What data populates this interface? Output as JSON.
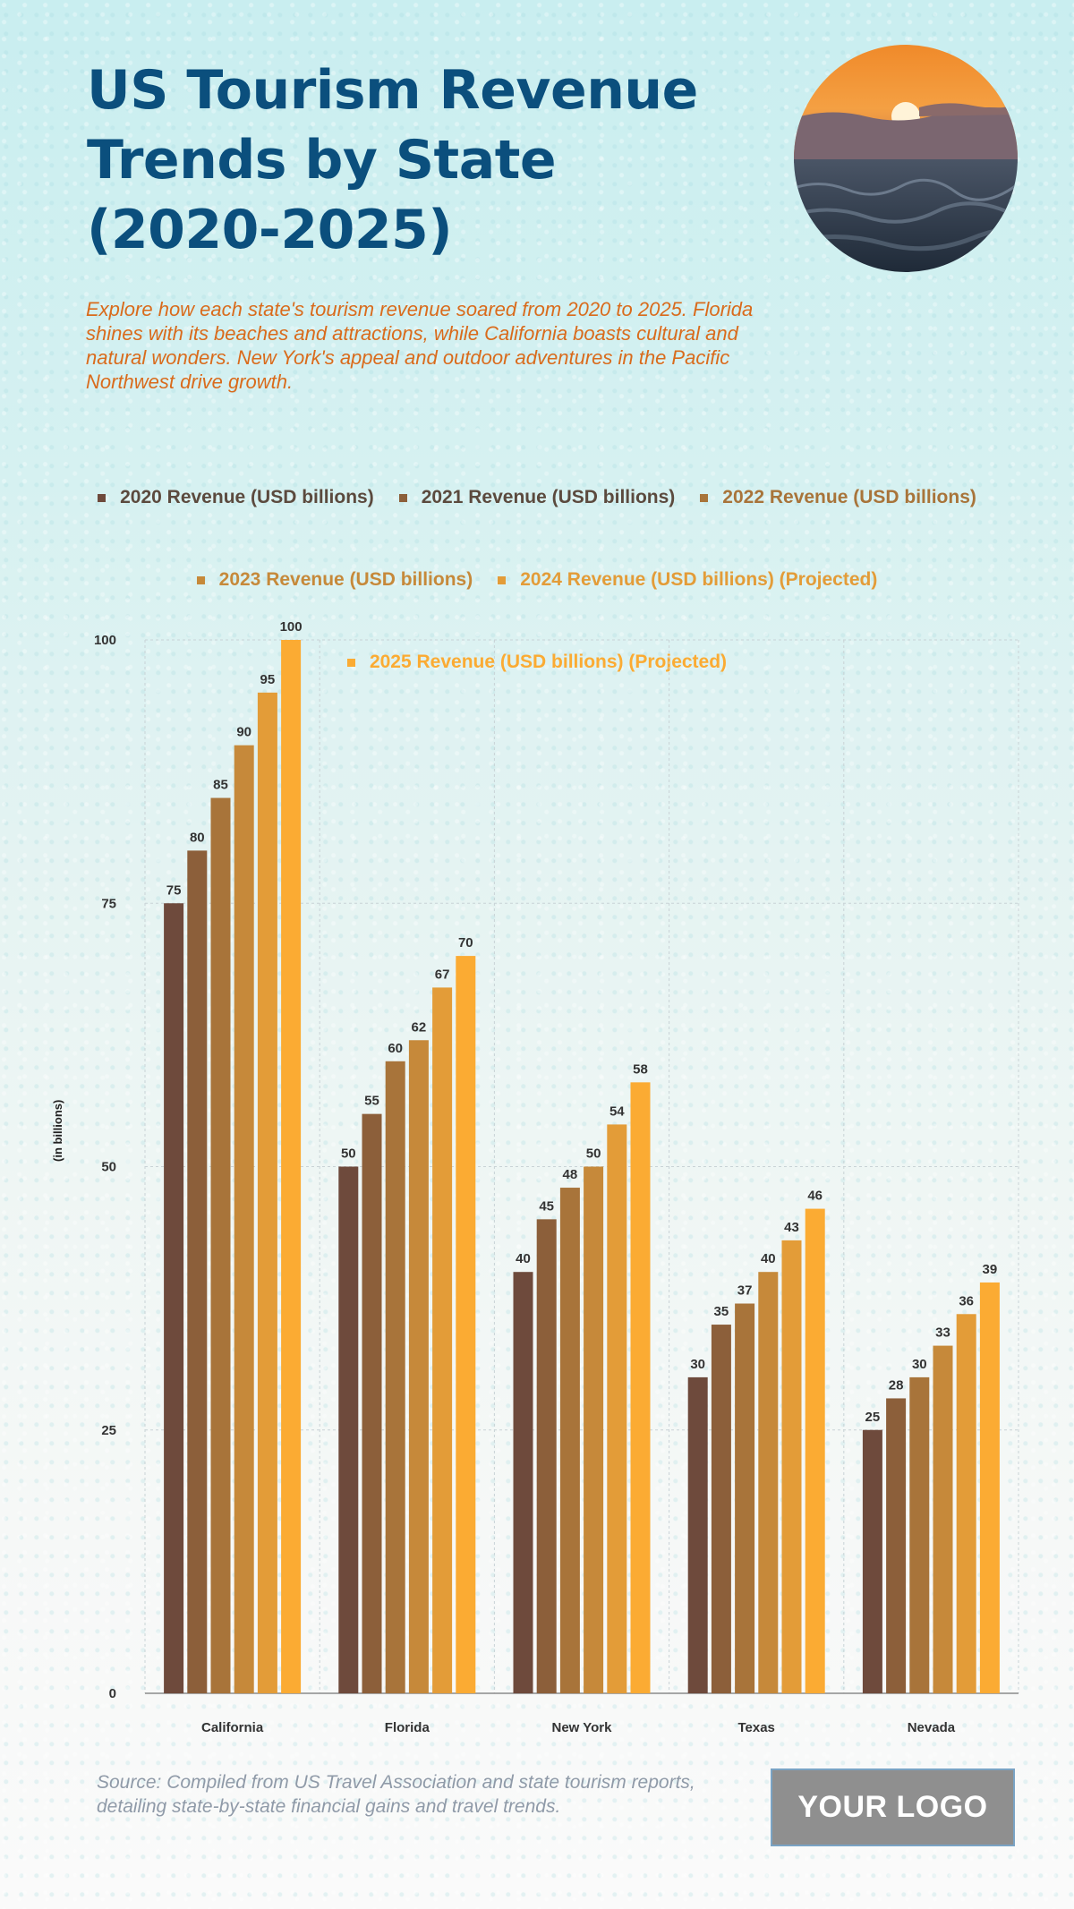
{
  "header": {
    "title": "US Tourism Revenue Trends by State (2020-2025)",
    "subtitle": "Explore how each state's tourism revenue soared from 2020 to 2025. Florida shines with its beaches and attractions, while California boasts cultural and natural wonders. New York's appeal and outdoor adventures in the Pacific Northwest drive growth."
  },
  "footer": {
    "source": "Source: Compiled from US Travel Association and state tourism reports, detailing state-by-state financial gains and travel trends.",
    "logo_text": "YOUR LOGO"
  },
  "colors": [
    "#6e4a3c",
    "#8c5f3a",
    "#a8743a",
    "#c6893a",
    "#e39c38",
    "#fbab33"
  ],
  "chart_data": {
    "type": "bar",
    "categories": [
      "California",
      "Florida",
      "New York",
      "Texas",
      "Nevada"
    ],
    "series": [
      {
        "name": "2020 Revenue (USD billions)",
        "values": [
          75,
          50,
          40,
          30,
          25
        ]
      },
      {
        "name": "2021 Revenue (USD billions)",
        "values": [
          80,
          55,
          45,
          35,
          28
        ]
      },
      {
        "name": "2022 Revenue (USD billions)",
        "values": [
          85,
          60,
          48,
          37,
          30
        ]
      },
      {
        "name": "2023 Revenue (USD billions)",
        "values": [
          90,
          62,
          50,
          40,
          33
        ]
      },
      {
        "name": "2024 Revenue (USD billions) (Projected)",
        "values": [
          95,
          67,
          54,
          43,
          36
        ]
      },
      {
        "name": "2025 Revenue (USD billions) (Projected)",
        "values": [
          100,
          70,
          58,
          46,
          39
        ]
      }
    ],
    "ylabel": "(in billions)",
    "xlabel": "",
    "ylim": [
      0,
      100
    ],
    "yticks": [
      0,
      25,
      50,
      75,
      100
    ],
    "grid": true,
    "legend_position": "top"
  }
}
